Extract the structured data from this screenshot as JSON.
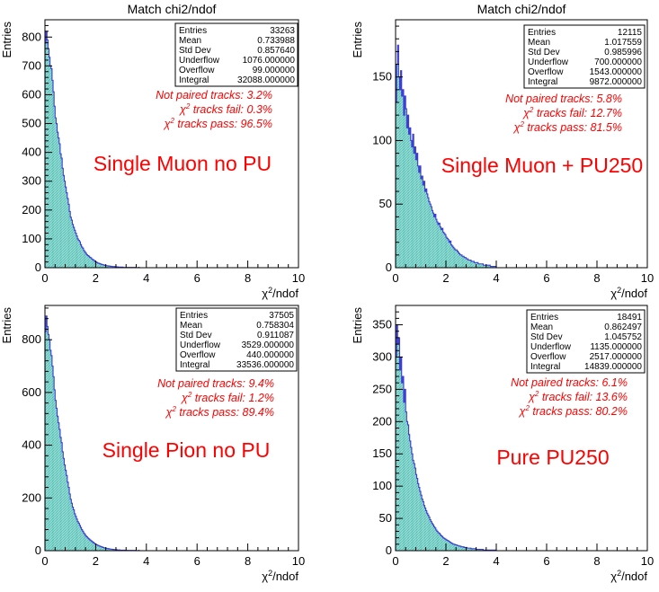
{
  "colors": {
    "fill": "#7fd8cf",
    "line": "#3b3bd6",
    "annotation": "#ff0000",
    "axis": "#000000"
  },
  "chart_data": [
    {
      "type": "bar",
      "title": "Match chi2/ndof",
      "xlabel": "χ²/ndof",
      "ylabel": "Entries",
      "xlim": [
        0,
        10
      ],
      "ylim": [
        0,
        860
      ],
      "xticks": [
        0,
        2,
        4,
        6,
        8,
        10
      ],
      "yticks": [
        0,
        100,
        200,
        300,
        400,
        500,
        600,
        700,
        800
      ],
      "label": "Single Muon no PU",
      "stats": [
        {
          "key": "Entries",
          "value": "33263"
        },
        {
          "key": "Mean",
          "value": "0.733988"
        },
        {
          "key": "Std Dev",
          "value": "0.857640"
        },
        {
          "key": "Underflow",
          "value": "1076.000000"
        },
        {
          "key": "Overflow",
          "value": "99.000000"
        },
        {
          "key": "Integral",
          "value": "32088.000000"
        }
      ],
      "annotations": [
        "Not paired tracks: 3.2%",
        "χ² tracks fail: 0.3%",
        "χ² tracks pass: 96.5%"
      ],
      "bin_width": 0.04,
      "values": [
        780,
        820,
        790,
        760,
        730,
        700,
        690,
        650,
        610,
        560,
        520,
        500,
        470,
        450,
        430,
        395,
        380,
        345,
        320,
        300,
        280,
        260,
        240,
        220,
        195,
        175,
        165,
        150,
        140,
        130,
        120,
        110,
        100,
        95,
        90,
        80,
        72,
        68,
        60,
        55,
        50,
        45,
        42,
        40,
        36,
        34,
        30,
        28,
        25,
        22,
        20,
        18,
        16,
        15,
        14,
        12,
        11,
        10,
        9,
        8,
        7,
        7,
        6,
        6,
        5,
        5,
        4,
        4,
        4,
        3,
        3,
        3,
        2,
        2,
        2,
        2,
        2,
        1,
        1,
        1,
        1,
        1,
        1,
        1,
        1,
        1,
        0,
        1,
        0,
        1,
        0,
        0,
        1,
        0,
        0,
        0,
        0,
        0,
        0,
        0
      ]
    },
    {
      "type": "bar",
      "title": "Match chi2/ndof",
      "xlabel": "χ²/ndof",
      "ylabel": "Entries",
      "xlim": [
        0,
        10
      ],
      "ylim": [
        0,
        195
      ],
      "xticks": [
        0,
        2,
        4,
        6,
        8,
        10
      ],
      "yticks": [
        0,
        50,
        100,
        150
      ],
      "label": "Single Muon + PU250",
      "stats": [
        {
          "key": "Entries",
          "value": "12115"
        },
        {
          "key": "Mean",
          "value": "1.017559"
        },
        {
          "key": "Std Dev",
          "value": "0.985996"
        },
        {
          "key": "Underflow",
          "value": "700.000000"
        },
        {
          "key": "Overflow",
          "value": "1543.000000"
        },
        {
          "key": "Integral",
          "value": "9872.000000"
        }
      ],
      "annotations": [
        "Not paired tracks: 5.8%",
        "χ² tracks fail: 12.7%",
        "χ² tracks pass: 81.5%"
      ],
      "bin_width": 0.04,
      "values": [
        130,
        160,
        175,
        150,
        140,
        155,
        135,
        140,
        120,
        135,
        125,
        110,
        120,
        105,
        110,
        100,
        95,
        105,
        90,
        95,
        85,
        90,
        80,
        75,
        80,
        70,
        72,
        65,
        68,
        60,
        62,
        58,
        55,
        52,
        50,
        48,
        45,
        43,
        40,
        42,
        38,
        36,
        34,
        35,
        32,
        30,
        31,
        28,
        27,
        26,
        24,
        23,
        22,
        20,
        21,
        18,
        17,
        16,
        15,
        14,
        14,
        13,
        12,
        11,
        10,
        10,
        9,
        9,
        8,
        8,
        7,
        7,
        6,
        6,
        6,
        5,
        5,
        5,
        4,
        4,
        4,
        4,
        3,
        3,
        3,
        3,
        3,
        2,
        2,
        2,
        2,
        2,
        2,
        2,
        1,
        1,
        1,
        1,
        1,
        1
      ]
    },
    {
      "type": "bar",
      "title": "",
      "xlabel": "χ²/ndof",
      "ylabel": "Entries",
      "xlim": [
        0,
        10
      ],
      "ylim": [
        0,
        930
      ],
      "xticks": [
        0,
        2,
        4,
        6,
        8,
        10
      ],
      "yticks": [
        0,
        200,
        400,
        600,
        800
      ],
      "label": "Single Pion no PU",
      "stats": [
        {
          "key": "Entries",
          "value": "37505"
        },
        {
          "key": "Mean",
          "value": "0.758304"
        },
        {
          "key": "Std Dev",
          "value": "0.911087"
        },
        {
          "key": "Underflow",
          "value": "3529.000000"
        },
        {
          "key": "Overflow",
          "value": "440.000000"
        },
        {
          "key": "Integral",
          "value": "33536.000000"
        }
      ],
      "annotations": [
        "Not paired tracks: 9.4%",
        "χ² tracks fail: 1.2%",
        "χ² tracks pass: 89.4%"
      ],
      "bin_width": 0.04,
      "values": [
        830,
        890,
        850,
        820,
        800,
        760,
        740,
        700,
        660,
        610,
        570,
        540,
        510,
        485,
        460,
        430,
        410,
        375,
        350,
        325,
        305,
        285,
        260,
        240,
        215,
        195,
        180,
        165,
        155,
        140,
        130,
        120,
        110,
        104,
        96,
        88,
        80,
        74,
        67,
        62,
        56,
        52,
        48,
        45,
        41,
        38,
        35,
        32,
        29,
        26,
        24,
        22,
        20,
        18,
        17,
        15,
        14,
        12,
        11,
        10,
        9,
        8,
        8,
        7,
        6,
        6,
        5,
        5,
        4,
        4,
        4,
        3,
        3,
        3,
        2,
        2,
        2,
        2,
        2,
        1,
        1,
        1,
        1,
        1,
        1,
        1,
        0,
        1,
        0,
        1,
        0,
        0,
        1,
        0,
        0,
        0,
        0,
        0,
        0,
        0
      ]
    },
    {
      "type": "bar",
      "title": "",
      "xlabel": "χ²/ndof",
      "ylabel": "Entries",
      "xlim": [
        0,
        10
      ],
      "ylim": [
        0,
        380
      ],
      "xticks": [
        0,
        2,
        4,
        6,
        8,
        10
      ],
      "yticks": [
        0,
        50,
        100,
        150,
        200,
        250,
        300,
        350
      ],
      "label": "Pure PU250",
      "stats": [
        {
          "key": "Entries",
          "value": "18491"
        },
        {
          "key": "Mean",
          "value": "0.862497"
        },
        {
          "key": "Std Dev",
          "value": "1.045752"
        },
        {
          "key": "Underflow",
          "value": "1135.000000"
        },
        {
          "key": "Overflow",
          "value": "2517.000000"
        },
        {
          "key": "Integral",
          "value": "14839.000000"
        }
      ],
      "annotations": [
        "Not paired tracks: 6.1%",
        "χ² tracks fail: 13.6%",
        "χ² tracks pass: 80.2%"
      ],
      "bin_width": 0.04,
      "values": [
        300,
        350,
        320,
        330,
        280,
        300,
        260,
        270,
        230,
        250,
        215,
        200,
        195,
        180,
        170,
        160,
        150,
        140,
        135,
        128,
        118,
        112,
        104,
        98,
        92,
        86,
        80,
        76,
        70,
        66,
        62,
        58,
        55,
        52,
        48,
        45,
        42,
        40,
        37,
        35,
        32,
        30,
        28,
        27,
        25,
        23,
        22,
        20,
        19,
        18,
        17,
        16,
        15,
        14,
        13,
        12,
        11,
        10,
        10,
        9,
        9,
        8,
        8,
        7,
        7,
        6,
        6,
        6,
        5,
        5,
        5,
        4,
        4,
        4,
        4,
        3,
        3,
        3,
        3,
        3,
        2,
        2,
        2,
        2,
        2,
        2,
        2,
        1,
        1,
        1,
        1,
        1,
        1,
        1,
        1,
        1,
        1,
        1,
        1,
        1
      ]
    }
  ]
}
